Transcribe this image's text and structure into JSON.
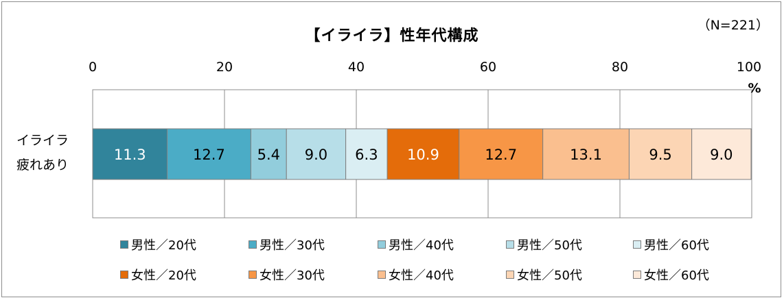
{
  "chart_data": {
    "type": "bar",
    "orientation": "horizontal",
    "stacked": true,
    "title": "【イライラ】性年代構成",
    "note": "（N=221）",
    "categories": [
      "イライラ\n疲れあり"
    ],
    "category_lines": [
      "イライラ",
      "疲れあり"
    ],
    "xlim": [
      0,
      100
    ],
    "x_ticks": [
      "0",
      "20",
      "40",
      "60",
      "80",
      "100"
    ],
    "x_unit": "%",
    "grid": true,
    "legend_position": "bottom",
    "series": [
      {
        "name": "男性／20代",
        "values": [
          11.3
        ],
        "label": "11.3",
        "color": "#31849b",
        "text_color": "#ffffff"
      },
      {
        "name": "男性／30代",
        "values": [
          12.7
        ],
        "label": "12.7",
        "color": "#4bacc6",
        "text_color": "#000000"
      },
      {
        "name": "男性／40代",
        "values": [
          5.4
        ],
        "label": "5.4",
        "color": "#92cddc",
        "text_color": "#000000"
      },
      {
        "name": "男性／50代",
        "values": [
          9.0
        ],
        "label": "9.0",
        "color": "#b7dee8",
        "text_color": "#000000"
      },
      {
        "name": "男性／60代",
        "values": [
          6.3
        ],
        "label": "6.3",
        "color": "#daeef3",
        "text_color": "#000000"
      },
      {
        "name": "女性／20代",
        "values": [
          10.9
        ],
        "label": "10.9",
        "color": "#e46c0a",
        "text_color": "#ffffff"
      },
      {
        "name": "女性／30代",
        "values": [
          12.7
        ],
        "label": "12.7",
        "color": "#f79646",
        "text_color": "#000000"
      },
      {
        "name": "女性／40代",
        "values": [
          13.1
        ],
        "label": "13.1",
        "color": "#fabf8f",
        "text_color": "#000000"
      },
      {
        "name": "女性／50代",
        "values": [
          9.5
        ],
        "label": "9.5",
        "color": "#fcd5b4",
        "text_color": "#000000"
      },
      {
        "name": "女性／60代",
        "values": [
          9.0
        ],
        "label": "9.0",
        "color": "#fde9d9",
        "text_color": "#000000"
      }
    ]
  }
}
